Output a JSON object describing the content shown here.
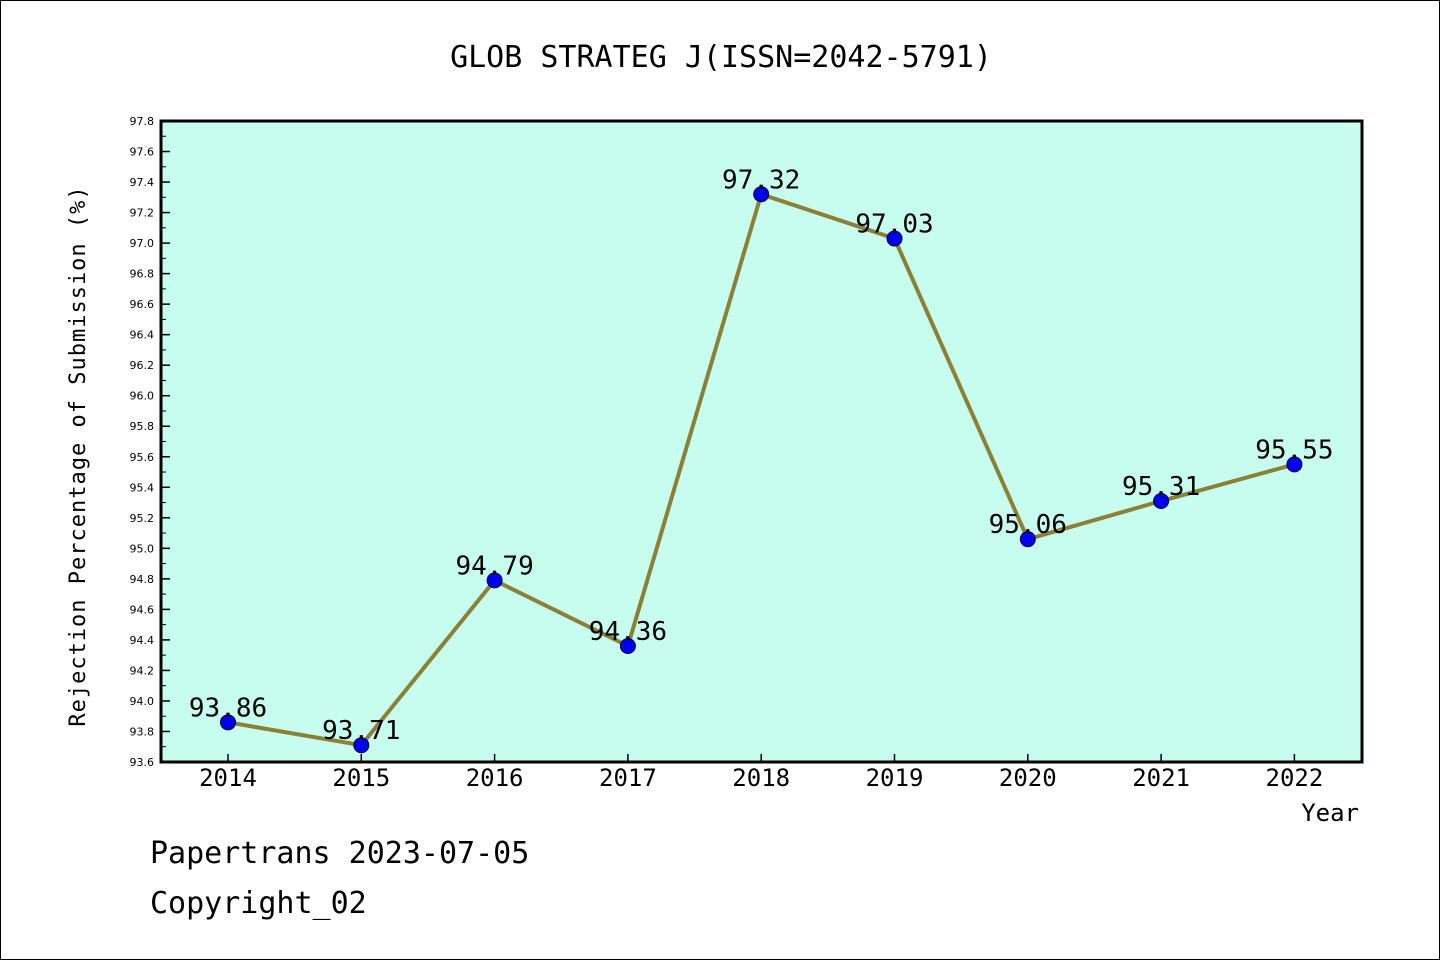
{
  "chart_data": {
    "type": "line",
    "title": "GLOB STRATEG J(ISSN=2042-5791)",
    "xlabel": "Year",
    "ylabel": "Rejection Percentage of Submission (%)",
    "categories": [
      "2014",
      "2015",
      "2016",
      "2017",
      "2018",
      "2019",
      "2020",
      "2021",
      "2022"
    ],
    "series": [
      {
        "values": [
          93.86,
          93.71,
          94.79,
          94.36,
          97.32,
          97.03,
          95.06,
          95.31,
          95.55
        ],
        "labels": [
          "93.86",
          "93.71",
          "94.79",
          "94.36",
          "97.32",
          "97.03",
          "95.06",
          "95.31",
          "95.55"
        ]
      }
    ],
    "ylim": [
      93.6,
      97.8
    ],
    "yticks": [
      "93.6",
      "93.8",
      "94.0",
      "94.2",
      "94.4",
      "94.6",
      "94.8",
      "95.0",
      "95.2",
      "95.4",
      "95.6",
      "95.8",
      "96.0",
      "96.2",
      "96.4",
      "96.6",
      "96.8",
      "97.0",
      "97.2",
      "97.4",
      "97.6",
      "97.8"
    ],
    "grid": false,
    "colors": {
      "plot_bg": "#c6fdee",
      "line": "#8b8035",
      "marker": "#0000ee"
    }
  },
  "footer": {
    "line1": "Papertrans 2023-07-05",
    "line2": "Copyright_02"
  }
}
